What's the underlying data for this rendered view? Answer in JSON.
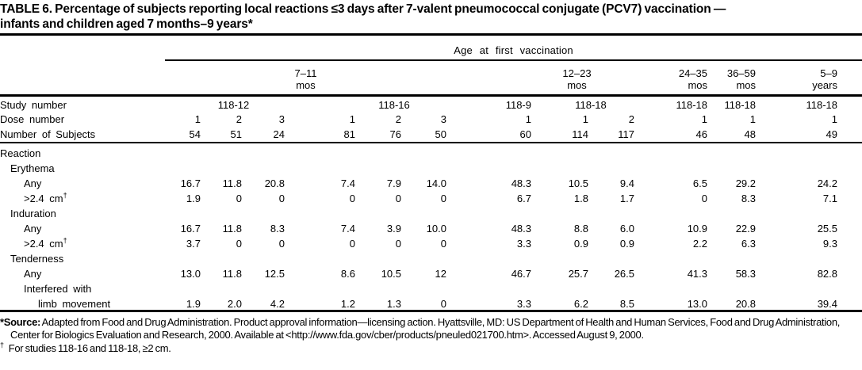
{
  "page": {
    "title_line1": "TABLE 6. Percentage of subjects reporting local reactions ≤3 days after 7-valent pneumococcal conjugate (PCV7) vaccination —",
    "title_line2": "infants and children aged 7 months–9 years*"
  },
  "table": {
    "age_header": "Age at first vaccination",
    "age_groups": [
      {
        "line1": "7–11",
        "line2": "mos",
        "span": 6
      },
      {
        "line1": "12–23",
        "line2": "mos",
        "span": 3
      },
      {
        "line1": "24–35",
        "line2": "mos",
        "span": 1
      },
      {
        "line1": "36–59",
        "line2": "mos",
        "span": 1
      },
      {
        "line1": "5–9",
        "line2": "years",
        "span": 1
      }
    ],
    "study_row": {
      "label": "Study number",
      "cells": [
        {
          "text": "118-12",
          "span": 3
        },
        {
          "text": "118-16",
          "span": 3
        },
        {
          "text": "118-9",
          "span": 1
        },
        {
          "text": "118-18",
          "span": 2
        },
        {
          "text": "118-18",
          "span": 1
        },
        {
          "text": "118-18",
          "span": 1
        },
        {
          "text": "118-18",
          "span": 1
        }
      ]
    },
    "dose_row": {
      "label": "Dose number",
      "values": [
        "1",
        "2",
        "3",
        "1",
        "2",
        "3",
        "1",
        "1",
        "2",
        "1",
        "1",
        "1"
      ]
    },
    "subjects_row": {
      "label": "Number of Subjects",
      "values": [
        "54",
        "51",
        "24",
        "81",
        "76",
        "50",
        "60",
        "114",
        "117",
        "46",
        "48",
        "49"
      ]
    },
    "section_label": "Reaction",
    "body_rows": [
      {
        "label": "Erythema",
        "indent": 1,
        "values": []
      },
      {
        "label": "Any",
        "indent": 2,
        "values": [
          "16.7",
          "11.8",
          "20.8",
          "7.4",
          "7.9",
          "14.0",
          "48.3",
          "10.5",
          "9.4",
          "6.5",
          "29.2",
          "24.2"
        ]
      },
      {
        "label": ">2.4 cm",
        "label_sup": "†",
        "indent": 2,
        "values": [
          "1.9",
          "0",
          "0",
          "0",
          "0",
          "0",
          "6.7",
          "1.8",
          "1.7",
          "0",
          "8.3",
          "7.1"
        ]
      },
      {
        "label": "Induration",
        "indent": 1,
        "values": []
      },
      {
        "label": "Any",
        "indent": 2,
        "values": [
          "16.7",
          "11.8",
          "8.3",
          "7.4",
          "3.9",
          "10.0",
          "48.3",
          "8.8",
          "6.0",
          "10.9",
          "22.9",
          "25.5"
        ]
      },
      {
        "label": ">2.4 cm",
        "label_sup": "†",
        "indent": 2,
        "values": [
          "3.7",
          "0",
          "0",
          "0",
          "0",
          "0",
          "3.3",
          "0.9",
          "0.9",
          "2.2",
          "6.3",
          "9.3"
        ]
      },
      {
        "label": "Tenderness",
        "indent": 1,
        "values": []
      },
      {
        "label": "Any",
        "indent": 2,
        "values": [
          "13.0",
          "11.8",
          "12.5",
          "8.6",
          "10.5",
          "12",
          "46.7",
          "25.7",
          "26.5",
          "41.3",
          "58.3",
          "82.8"
        ]
      },
      {
        "label": "Interfered with",
        "indent": 2,
        "values": []
      },
      {
        "label": "limb movement",
        "indent": 3,
        "values": [
          "1.9",
          "2.0",
          "4.2",
          "1.2",
          "1.3",
          "0",
          "3.3",
          "6.2",
          "8.5",
          "13.0",
          "20.8",
          "39.4"
        ]
      }
    ]
  },
  "footnotes": {
    "source_marker": "*",
    "source_label": "Source:",
    "source_text": " Adapted from Food and Drug Administration. Product approval information—licensing action. Hyattsville, MD: US Department of Health and Human Services, Food and Drug Administration, Center for Biologics Evaluation and Research, 2000. Available at <http://www.fda.gov/cber/products/pneuled021700.htm>. Accessed August 9, 2000.",
    "dagger_marker": "†",
    "dagger_text": "For studies 118-16 and 118-18, ≥2 cm."
  }
}
